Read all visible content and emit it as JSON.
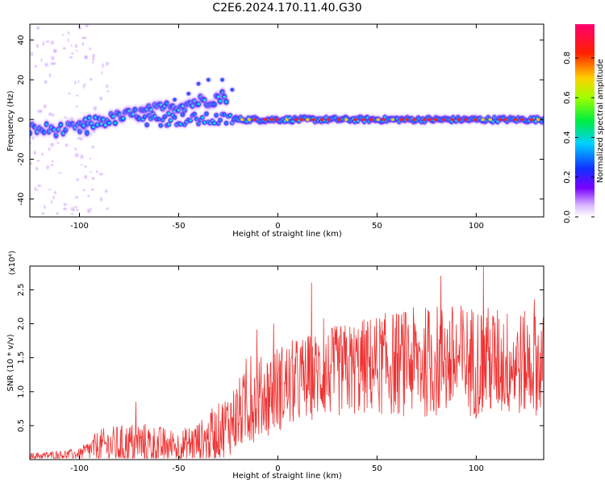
{
  "title": "C2E6.2024.170.11.40.G30",
  "colors": {
    "snr_line": "#ee3333",
    "axes": "#000000"
  },
  "chart_data": [
    {
      "type": "heatmap",
      "title": "C2E6.2024.170.11.40.G30",
      "xlabel": "Height of straight line (km)",
      "ylabel": "Frequency (Hz)",
      "xlim": [
        -125,
        134
      ],
      "ylim": [
        -49,
        48
      ],
      "x_ticks": [
        -100,
        -50,
        0,
        50,
        100
      ],
      "y_ticks": [
        -40,
        -20,
        0,
        20,
        40
      ],
      "colorbar": {
        "label": "Normalized spectral amplitude",
        "range": [
          0,
          0.97
        ],
        "ticks": [
          0.0,
          0.2,
          0.4,
          0.6,
          0.8
        ],
        "colormap": "rainbow (white-purple-blue-cyan-green-yellow-red-magenta)"
      },
      "features": [
        {
          "x_range": [
            -125,
            -100
          ],
          "center_freq": -5,
          "note": "scattered low-amplitude points across all frequencies"
        },
        {
          "x_range": [
            -100,
            -25
          ],
          "center_freq_start": -3,
          "center_freq_end": 12,
          "note": "rising branch up to ~20 Hz"
        },
        {
          "x_range": [
            -60,
            -20
          ],
          "center_freq": 0,
          "note": "secondary band near 0-5 Hz"
        },
        {
          "x_range": [
            -20,
            134
          ],
          "center_freq": 0,
          "peak_amplitude": 0.95,
          "note": "strong narrow band, red peaks"
        }
      ],
      "grid": false
    },
    {
      "type": "line",
      "xlabel": "Height of straight line (km)",
      "ylabel": "SNR (10 * v/v)",
      "y_multiplier": "(x10⁴)",
      "xlim": [
        -125,
        134
      ],
      "ylim": [
        0,
        2.85
      ],
      "x_ticks": [
        -100,
        -50,
        0,
        50,
        100
      ],
      "y_ticks": [
        0.5,
        1.0,
        1.5,
        2.0,
        2.5
      ],
      "envelope": [
        {
          "x": -125,
          "base": 0.05,
          "amp": 0.05
        },
        {
          "x": -100,
          "base": 0.08,
          "amp": 0.08
        },
        {
          "x": -90,
          "base": 0.2,
          "amp": 0.25
        },
        {
          "x": -70,
          "base": 0.22,
          "amp": 0.35
        },
        {
          "x": -50,
          "base": 0.18,
          "amp": 0.25
        },
        {
          "x": -35,
          "base": 0.3,
          "amp": 0.35
        },
        {
          "x": -20,
          "base": 0.65,
          "amp": 0.55
        },
        {
          "x": -10,
          "base": 0.9,
          "amp": 0.6
        },
        {
          "x": 0,
          "base": 1.05,
          "amp": 0.65
        },
        {
          "x": 20,
          "base": 1.25,
          "amp": 0.65
        },
        {
          "x": 50,
          "base": 1.4,
          "amp": 0.75
        },
        {
          "x": 80,
          "base": 1.45,
          "amp": 0.85
        },
        {
          "x": 100,
          "base": 1.45,
          "amp": 0.85
        },
        {
          "x": 134,
          "base": 1.4,
          "amp": 0.75
        }
      ],
      "max_value": 2.85,
      "grid": false
    }
  ]
}
